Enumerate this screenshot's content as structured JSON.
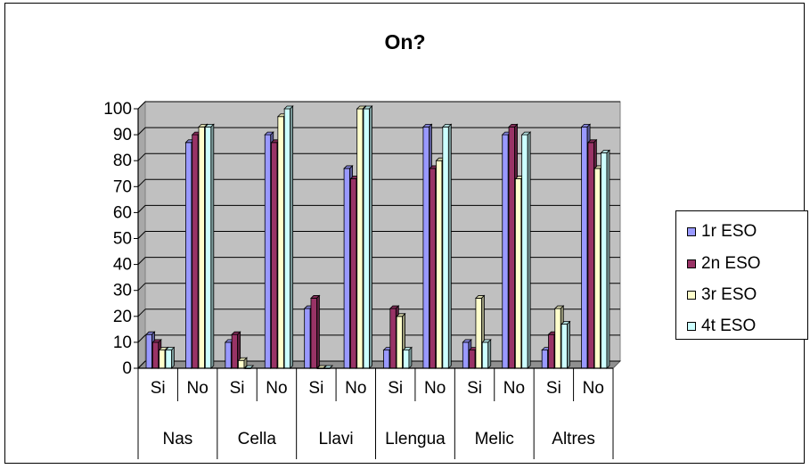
{
  "chart_data": {
    "type": "bar",
    "title": "On?",
    "xlabel": "",
    "ylabel": "",
    "ylim": [
      0,
      100
    ],
    "yticks": [
      0,
      10,
      20,
      30,
      40,
      50,
      60,
      70,
      80,
      90,
      100
    ],
    "groups": [
      {
        "name": "Nas",
        "categories": [
          "Si",
          "No"
        ]
      },
      {
        "name": "Cella",
        "categories": [
          "Si",
          "No"
        ]
      },
      {
        "name": "Llavi",
        "categories": [
          "Si",
          "No"
        ]
      },
      {
        "name": "Llengua",
        "categories": [
          "Si",
          "No"
        ]
      },
      {
        "name": "Melic",
        "categories": [
          "Si",
          "No"
        ]
      },
      {
        "name": "Altres",
        "categories": [
          "Si",
          "No"
        ]
      }
    ],
    "categories": [
      "Si",
      "No",
      "Si",
      "No",
      "Si",
      "No",
      "Si",
      "No",
      "Si",
      "No",
      "Si",
      "No"
    ],
    "series": [
      {
        "name": "1r ESO",
        "color": "#9999ff",
        "values": [
          13,
          87,
          10,
          90,
          23,
          77,
          7,
          93,
          10,
          90,
          7,
          93
        ]
      },
      {
        "name": "2n ESO",
        "color": "#993366",
        "values": [
          10,
          90,
          13,
          87,
          27,
          73,
          23,
          77,
          7,
          93,
          13,
          87
        ]
      },
      {
        "name": "3r ESO",
        "color": "#ffffcc",
        "values": [
          7,
          93,
          3,
          97,
          0,
          100,
          20,
          80,
          27,
          73,
          23,
          77
        ]
      },
      {
        "name": "4t ESO",
        "color": "#ccffff",
        "values": [
          7,
          93,
          0,
          100,
          0,
          100,
          7,
          93,
          10,
          90,
          17,
          83
        ]
      }
    ],
    "grid": true,
    "legend": "right"
  }
}
